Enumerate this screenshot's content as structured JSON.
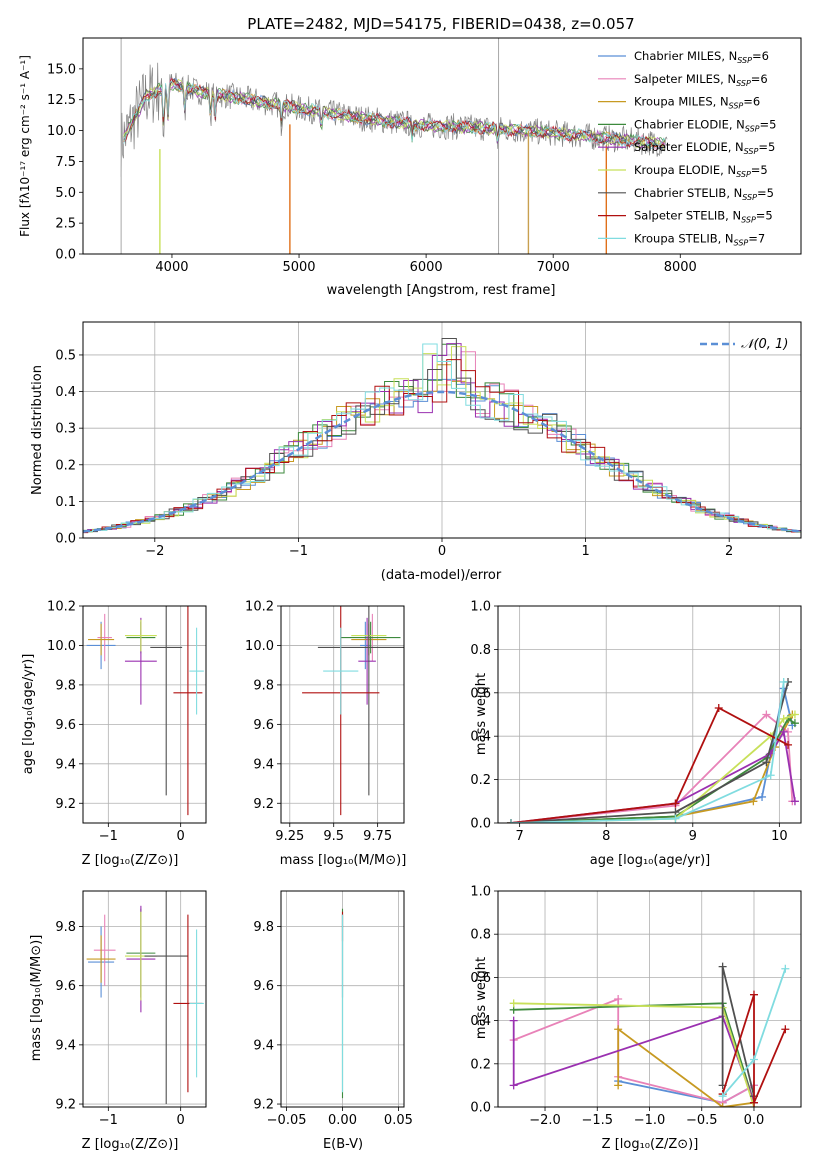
{
  "colors": {
    "grid": "#b0b0b0",
    "noisy_data": "#808080",
    "gauss": "#5b8fd6"
  },
  "panels": {
    "spectrum": {
      "title": "PLATE=2482, MJD=54175, FIBERID=0438, z=0.057",
      "xlabel": "wavelength [Angstrom, rest frame]",
      "ylabel": "Flux [fλ10⁻¹⁷ erg cm⁻² s⁻¹ A⁻¹]"
    },
    "residuals": {
      "xlabel": "(data-model)/error",
      "ylabel": "Normed distribution",
      "legend": "𝒩(0, 1)"
    },
    "age_vs_Z": {
      "xlabel": "Z [log₁₀(Z/Z⊙)]",
      "ylabel": "age  [log₁₀(age/yr)]"
    },
    "age_vs_mass": {
      "xlabel": "mass [log₁₀(M/M⊙)]"
    },
    "weight_vs_age": {
      "xlabel": "age  [log₁₀(age/yr)]",
      "ylabel": "mass weight"
    },
    "mass_vs_Z": {
      "xlabel": "Z [log₁₀(Z/Z⊙)]",
      "ylabel": "mass [log₁₀(M/M⊙)]"
    },
    "mass_vs_ebv": {
      "xlabel": "E(B-V)"
    },
    "weight_vs_Z": {
      "xlabel": "Z [log₁₀(Z/Z⊙)]",
      "ylabel": "mass weight"
    }
  },
  "chart_data": [
    {
      "type": "line",
      "panel": "spectrum",
      "title": "PLATE=2482, MJD=54175, FIBERID=0438, z=0.057",
      "xlim": [
        3300,
        8950
      ],
      "ylim": [
        0,
        17.5
      ],
      "xticks": [
        4000,
        5000,
        6000,
        7000,
        8000
      ],
      "yticks": [
        0.0,
        2.5,
        5.0,
        7.5,
        10.0,
        12.5,
        15.0
      ],
      "legend_position": "top-right",
      "series": [
        {
          "name": "Chabrier MILES, N_SSP=6",
          "color": "#5b8fd6"
        },
        {
          "name": "Salpeter MILES, N_SSP=6",
          "color": "#e882b8"
        },
        {
          "name": "Kroupa MILES, N_SSP=6",
          "color": "#c79a22"
        },
        {
          "name": "Chabrier ELODIE, N_SSP=5",
          "color": "#3d8a3d"
        },
        {
          "name": "Salpeter ELODIE, N_SSP=5",
          "color": "#9a30b0"
        },
        {
          "name": "Kroupa ELODIE, N_SSP=5",
          "color": "#c8e05a"
        },
        {
          "name": "Chabrier STELIB, N_SSP=5",
          "color": "#505050"
        },
        {
          "name": "Salpeter STELIB, N_SSP=5",
          "color": "#b01010"
        },
        {
          "name": "Kroupa STELIB, N_SSP=7",
          "color": "#80dce0"
        }
      ],
      "continuum": {
        "x": [
          3600,
          3800,
          4000,
          4200,
          4500,
          5000,
          5500,
          6000,
          6500,
          7000,
          7500,
          7900
        ],
        "y": [
          9.0,
          12.8,
          13.8,
          13.2,
          12.7,
          11.8,
          11.0,
          10.4,
          10.2,
          9.8,
          9.3,
          8.9
        ]
      }
    },
    {
      "type": "bar",
      "panel": "residuals",
      "xlim": [
        -2.5,
        2.5
      ],
      "ylim": [
        0,
        0.59
      ],
      "xticks": [
        -2,
        -1,
        0,
        1,
        2
      ],
      "yticks": [
        0.0,
        0.1,
        0.2,
        0.3,
        0.4,
        0.5
      ],
      "bin_width": 0.1,
      "gauss": {
        "mean": 0,
        "sigma": 1
      },
      "legend_position": "top-right"
    },
    {
      "type": "scatter",
      "panel": "age_vs_Z",
      "xlim": [
        -1.35,
        0.35
      ],
      "ylim": [
        9.1,
        10.2
      ],
      "xticks": [
        -1,
        0
      ],
      "yticks": [
        9.2,
        9.4,
        9.6,
        9.8,
        10.0,
        10.2
      ],
      "points": [
        {
          "x": -1.1,
          "y": 10.0,
          "xerr": 0.2,
          "yerr": 0.12,
          "color": "#5b8fd6"
        },
        {
          "x": -1.05,
          "y": 10.04,
          "xerr": 0.1,
          "yerr": 0.12,
          "color": "#e882b8"
        },
        {
          "x": -1.1,
          "y": 10.03,
          "xerr": 0.18,
          "yerr": 0.08,
          "color": "#c79a22"
        },
        {
          "x": -0.55,
          "y": 10.04,
          "xerr": 0.2,
          "yerr": 0.08,
          "color": "#3d8a3d"
        },
        {
          "x": -0.55,
          "y": 9.92,
          "xerr": 0.22,
          "yerr": 0.22,
          "color": "#9a30b0"
        },
        {
          "x": -0.55,
          "y": 10.05,
          "xerr": 0.22,
          "yerr": 0.08,
          "color": "#c8e05a"
        },
        {
          "x": -0.2,
          "y": 9.99,
          "xerr": 0.22,
          "yerr": 0.75,
          "color": "#505050"
        },
        {
          "x": 0.1,
          "y": 9.76,
          "xerr": 0.2,
          "yerr": 0.62,
          "color": "#b01010"
        },
        {
          "x": 0.22,
          "y": 9.87,
          "xerr": 0.1,
          "yerr": 0.22,
          "color": "#80dce0"
        }
      ]
    },
    {
      "type": "scatter",
      "panel": "age_vs_mass",
      "xlim": [
        9.2,
        9.9
      ],
      "ylim": [
        9.1,
        10.2
      ],
      "xticks": [
        9.25,
        9.5,
        9.75
      ],
      "yticks": [
        9.2,
        9.4,
        9.6,
        9.8,
        10.0,
        10.2
      ],
      "points": [
        {
          "x": 9.68,
          "y": 10.0,
          "xerr": 0.03,
          "yerr": 0.12,
          "color": "#5b8fd6"
        },
        {
          "x": 9.72,
          "y": 10.04,
          "xerr": 0.03,
          "yerr": 0.12,
          "color": "#e882b8"
        },
        {
          "x": 9.7,
          "y": 10.03,
          "xerr": 0.1,
          "yerr": 0.08,
          "color": "#c79a22"
        },
        {
          "x": 9.71,
          "y": 10.04,
          "xerr": 0.17,
          "yerr": 0.08,
          "color": "#3d8a3d"
        },
        {
          "x": 9.69,
          "y": 9.92,
          "xerr": 0.05,
          "yerr": 0.22,
          "color": "#9a30b0"
        },
        {
          "x": 9.7,
          "y": 10.05,
          "xerr": 0.1,
          "yerr": 0.08,
          "color": "#c8e05a"
        },
        {
          "x": 9.7,
          "y": 9.99,
          "xerr": 0.29,
          "yerr": 0.75,
          "color": "#505050"
        },
        {
          "x": 9.54,
          "y": 9.76,
          "xerr": 0.22,
          "yerr": 0.62,
          "color": "#b01010"
        },
        {
          "x": 9.54,
          "y": 9.87,
          "xerr": 0.1,
          "yerr": 0.22,
          "color": "#80dce0"
        }
      ]
    },
    {
      "type": "line",
      "panel": "weight_vs_age",
      "xlim": [
        6.75,
        10.25
      ],
      "ylim": [
        0,
        1.0
      ],
      "xticks": [
        7,
        8,
        9,
        10
      ],
      "yticks": [
        0.0,
        0.2,
        0.4,
        0.6,
        0.8,
        1.0
      ],
      "series": [
        {
          "color": "#5b8fd6",
          "x": [
            6.9,
            8.8,
            9.8,
            10.05,
            10.15
          ],
          "y": [
            0.0,
            0.03,
            0.12,
            0.62,
            0.45
          ]
        },
        {
          "color": "#e882b8",
          "x": [
            6.9,
            8.8,
            9.85,
            10.1,
            10.15
          ],
          "y": [
            0.0,
            0.08,
            0.5,
            0.42,
            0.1
          ]
        },
        {
          "color": "#c79a22",
          "x": [
            6.9,
            8.8,
            9.7,
            9.95,
            10.15
          ],
          "y": [
            0.0,
            0.03,
            0.1,
            0.35,
            0.5
          ]
        },
        {
          "color": "#3d8a3d",
          "x": [
            6.9,
            8.8,
            9.85,
            10.1,
            10.18
          ],
          "y": [
            0.0,
            0.03,
            0.3,
            0.48,
            0.46
          ]
        },
        {
          "color": "#9a30b0",
          "x": [
            6.9,
            8.8,
            9.9,
            10.05,
            10.18
          ],
          "y": [
            0.0,
            0.09,
            0.32,
            0.42,
            0.1
          ]
        },
        {
          "color": "#c8e05a",
          "x": [
            6.9,
            8.8,
            9.9,
            10.05,
            10.18
          ],
          "y": [
            0.0,
            0.02,
            0.4,
            0.48,
            0.5
          ]
        },
        {
          "color": "#505050",
          "x": [
            6.9,
            8.8,
            9.85,
            10.1
          ],
          "y": [
            0.0,
            0.05,
            0.28,
            0.65
          ]
        },
        {
          "color": "#b01010",
          "x": [
            6.9,
            8.8,
            9.3,
            10.1
          ],
          "y": [
            0.0,
            0.09,
            0.53,
            0.36
          ]
        },
        {
          "color": "#80dce0",
          "x": [
            6.9,
            8.8,
            9.9,
            10.05
          ],
          "y": [
            0.0,
            0.02,
            0.22,
            0.65
          ]
        }
      ]
    },
    {
      "type": "scatter",
      "panel": "mass_vs_Z",
      "xlim": [
        -1.35,
        0.35
      ],
      "ylim": [
        9.19,
        9.92
      ],
      "xticks": [
        -1,
        0
      ],
      "yticks": [
        9.2,
        9.4,
        9.6,
        9.8
      ],
      "points": [
        {
          "x": -1.1,
          "y": 9.68,
          "xerr": 0.18,
          "yerr": 0.12,
          "color": "#5b8fd6"
        },
        {
          "x": -1.05,
          "y": 9.72,
          "xerr": 0.15,
          "yerr": 0.12,
          "color": "#e882b8"
        },
        {
          "x": -1.1,
          "y": 9.69,
          "xerr": 0.2,
          "yerr": 0.08,
          "color": "#c79a22"
        },
        {
          "x": -0.55,
          "y": 9.71,
          "xerr": 0.2,
          "yerr": 0.15,
          "color": "#3d8a3d"
        },
        {
          "x": -0.55,
          "y": 9.69,
          "xerr": 0.2,
          "yerr": 0.18,
          "color": "#9a30b0"
        },
        {
          "x": -0.55,
          "y": 9.7,
          "xerr": 0.22,
          "yerr": 0.15,
          "color": "#c8e05a"
        },
        {
          "x": -0.2,
          "y": 9.7,
          "xerr": 0.3,
          "yerr": 0.5,
          "color": "#505050"
        },
        {
          "x": 0.1,
          "y": 9.54,
          "xerr": 0.2,
          "yerr": 0.3,
          "color": "#b01010"
        },
        {
          "x": 0.22,
          "y": 9.54,
          "xerr": 0.1,
          "yerr": 0.25,
          "color": "#80dce0"
        }
      ]
    },
    {
      "type": "scatter",
      "panel": "mass_vs_ebv",
      "xlim": [
        -0.055,
        0.055
      ],
      "ylim": [
        9.19,
        9.92
      ],
      "xticks": [
        -0.05,
        0.0,
        0.05
      ],
      "yticks": [
        9.2,
        9.4,
        9.6,
        9.8
      ],
      "points": [
        {
          "x": 0.0,
          "y": 9.54,
          "yerr": 0.32,
          "color": "#3d8a3d"
        },
        {
          "x": 0.0,
          "y": 9.7,
          "yerr": 0.14,
          "color": "#505050"
        },
        {
          "x": 0.0,
          "y": 9.8,
          "yerr": 0.05,
          "color": "#b01010"
        },
        {
          "x": 0.0,
          "y": 9.54,
          "yerr": 0.3,
          "color": "#80dce0"
        }
      ]
    },
    {
      "type": "line",
      "panel": "weight_vs_Z",
      "xlim": [
        -2.45,
        0.45
      ],
      "ylim": [
        0,
        1.0
      ],
      "xticks": [
        -2.0,
        -1.5,
        -1.0,
        -0.5,
        0.0
      ],
      "yticks": [
        0.0,
        0.2,
        0.4,
        0.6,
        0.8,
        1.0
      ],
      "series": [
        {
          "color": "#5b8fd6",
          "x": [
            -1.3,
            -0.3,
            0.0
          ],
          "y": [
            0.12,
            0.02,
            0.1
          ]
        },
        {
          "color": "#e882b8",
          "x": [
            -2.3,
            -1.3,
            -1.3,
            -0.3,
            0.0
          ],
          "y": [
            0.31,
            0.5,
            0.14,
            0.02,
            0.1
          ]
        },
        {
          "color": "#c79a22",
          "x": [
            -1.3,
            -1.3,
            -0.3,
            0.0
          ],
          "y": [
            0.1,
            0.36,
            0.0,
            0.02
          ]
        },
        {
          "color": "#3d8a3d",
          "x": [
            -2.3,
            -0.3,
            0.0
          ],
          "y": [
            0.45,
            0.48,
            0.02
          ]
        },
        {
          "color": "#9a30b0",
          "x": [
            -2.3,
            -2.3,
            -0.3,
            0.0
          ],
          "y": [
            0.4,
            0.1,
            0.42,
            0.02
          ]
        },
        {
          "color": "#c8e05a",
          "x": [
            -2.3,
            -0.3,
            0.0
          ],
          "y": [
            0.48,
            0.46,
            0.0
          ]
        },
        {
          "color": "#505050",
          "x": [
            -0.3,
            -0.3,
            0.0
          ],
          "y": [
            0.1,
            0.65,
            0.05
          ]
        },
        {
          "color": "#b01010",
          "x": [
            -0.3,
            0.0,
            0.0,
            0.3
          ],
          "y": [
            0.06,
            0.52,
            0.02,
            0.36
          ]
        },
        {
          "color": "#80dce0",
          "x": [
            -0.3,
            0.0,
            0.3
          ],
          "y": [
            0.05,
            0.22,
            0.64
          ]
        }
      ]
    }
  ]
}
